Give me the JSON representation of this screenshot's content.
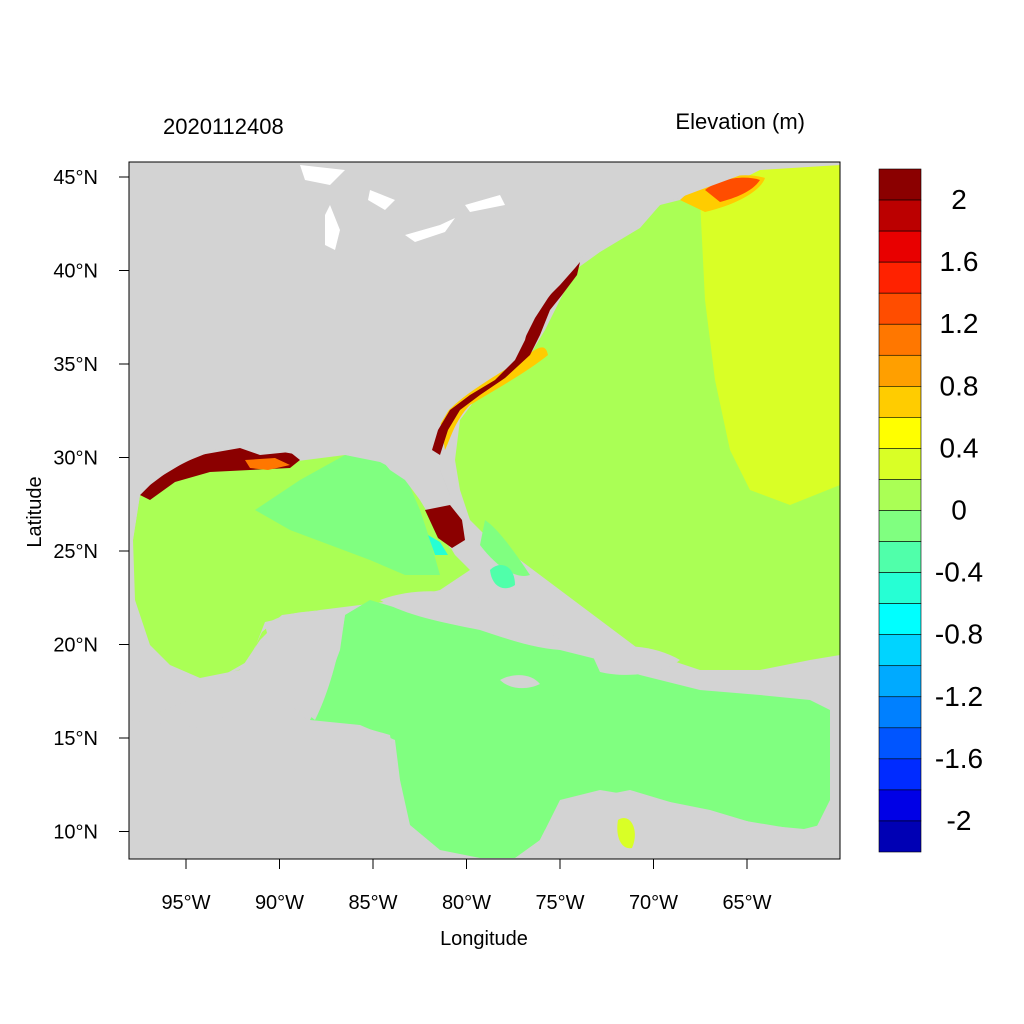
{
  "title_left": "2020112408",
  "title_right": "Elevation (m)",
  "xlabel": "Longitude",
  "ylabel": "Latitude",
  "x_ticks": [
    "95°W",
    "90°W",
    "85°W",
    "80°W",
    "75°W",
    "70°W",
    "65°W"
  ],
  "y_ticks": [
    "45°N",
    "40°N",
    "35°N",
    "30°N",
    "25°N",
    "20°N",
    "15°N",
    "10°N"
  ],
  "x_tick_values": [
    -95,
    -90,
    -85,
    -80,
    -75,
    -70,
    -65
  ],
  "y_tick_values": [
    45,
    40,
    35,
    30,
    25,
    20,
    15,
    10
  ],
  "colorbar": {
    "labels": [
      "2",
      "1.6",
      "1.2",
      "0.8",
      "0.4",
      "0",
      "-0.4",
      "-0.8",
      "-1.2",
      "-1.6",
      "-2"
    ],
    "colors": [
      "#8b0000",
      "#bb0000",
      "#e80000",
      "#ff2200",
      "#ff4d00",
      "#ff7700",
      "#ff9f00",
      "#ffcc00",
      "#ffff00",
      "#d9ff26",
      "#aaff55",
      "#80ff80",
      "#50ffaa",
      "#26ffd4",
      "#00ffff",
      "#00d4ff",
      "#00aaff",
      "#0080ff",
      "#0055ff",
      "#002bff",
      "#0000e6",
      "#0000b4"
    ]
  },
  "colors": {
    "land": "#d3d3d3",
    "coast": "#ffffff",
    "frame": "#000000"
  }
}
